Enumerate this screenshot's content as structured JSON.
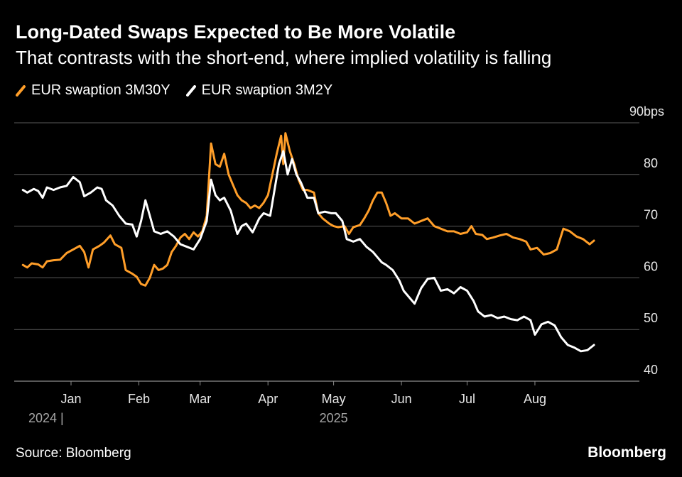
{
  "header": {
    "title": "Long-Dated Swaps Expected to Be More Volatile",
    "subtitle": "That contrasts with the short-end, where implied volatility is falling"
  },
  "footer": {
    "source": "Source: Bloomberg",
    "brand": "Bloomberg"
  },
  "colors": {
    "background": "#000000",
    "grid": "#5a5a5a",
    "text": "#ffffff",
    "axis_label": "#e6e6e6",
    "year_label": "#a6a6a6"
  },
  "chart_data": {
    "type": "line",
    "title": "Long-Dated Swaps Expected to Be More Volatile",
    "subtitle": "That contrasts with the short-end, where implied volatility is falling",
    "xlabel": "",
    "ylabel": "",
    "x_range": [
      "2024-12-10",
      "2025-08-28"
    ],
    "ylim": [
      40,
      90
    ],
    "y_ticks": [
      {
        "value": 90,
        "label": "90bps"
      },
      {
        "value": 80,
        "label": "80"
      },
      {
        "value": 70,
        "label": "70"
      },
      {
        "value": 60,
        "label": "60"
      },
      {
        "value": 50,
        "label": "50"
      },
      {
        "value": 40,
        "label": "40"
      }
    ],
    "x_ticks": [
      {
        "date": "2025-01-01",
        "label": "Jan"
      },
      {
        "date": "2025-02-01",
        "label": "Feb"
      },
      {
        "date": "2025-03-01",
        "label": "Mar"
      },
      {
        "date": "2025-04-01",
        "label": "Apr"
      },
      {
        "date": "2025-05-01",
        "label": "May"
      },
      {
        "date": "2025-06-01",
        "label": "Jun"
      },
      {
        "date": "2025-07-01",
        "label": "Jul"
      },
      {
        "date": "2025-08-01",
        "label": "Aug"
      }
    ],
    "year_labels": [
      {
        "date": "2024-12-12",
        "label": "2024 |"
      },
      {
        "date": "2025-05-01",
        "label": "2025"
      }
    ],
    "grid": true,
    "legend_position": "top-left",
    "series": [
      {
        "name": "EUR swaption 3M30Y",
        "color": "#ff9e29",
        "points": [
          [
            "2024-12-10",
            62.5
          ],
          [
            "2024-12-12",
            62.0
          ],
          [
            "2024-12-14",
            62.8
          ],
          [
            "2024-12-17",
            62.6
          ],
          [
            "2024-12-19",
            62.0
          ],
          [
            "2024-12-21",
            63.2
          ],
          [
            "2024-12-24",
            63.4
          ],
          [
            "2024-12-27",
            63.5
          ],
          [
            "2024-12-30",
            64.8
          ],
          [
            "2025-01-02",
            65.5
          ],
          [
            "2025-01-05",
            66.2
          ],
          [
            "2025-01-07",
            65.0
          ],
          [
            "2025-01-09",
            62.0
          ],
          [
            "2025-01-11",
            65.5
          ],
          [
            "2025-01-14",
            66.2
          ],
          [
            "2025-01-16",
            66.8
          ],
          [
            "2025-01-19",
            68.2
          ],
          [
            "2025-01-21",
            66.5
          ],
          [
            "2025-01-24",
            65.8
          ],
          [
            "2025-01-26",
            61.5
          ],
          [
            "2025-01-29",
            60.8
          ],
          [
            "2025-01-31",
            60.2
          ],
          [
            "2025-02-02",
            58.8
          ],
          [
            "2025-02-04",
            58.5
          ],
          [
            "2025-02-06",
            60.0
          ],
          [
            "2025-02-08",
            62.5
          ],
          [
            "2025-02-10",
            61.5
          ],
          [
            "2025-02-12",
            61.8
          ],
          [
            "2025-02-14",
            62.5
          ],
          [
            "2025-02-16",
            65.0
          ],
          [
            "2025-02-18",
            66.2
          ],
          [
            "2025-02-20",
            67.8
          ],
          [
            "2025-02-22",
            68.5
          ],
          [
            "2025-02-24",
            67.5
          ],
          [
            "2025-02-26",
            68.8
          ],
          [
            "2025-02-28",
            68.0
          ],
          [
            "2025-03-02",
            69.0
          ],
          [
            "2025-03-04",
            72.0
          ],
          [
            "2025-03-06",
            86.0
          ],
          [
            "2025-03-08",
            82.0
          ],
          [
            "2025-03-10",
            81.5
          ],
          [
            "2025-03-12",
            84.0
          ],
          [
            "2025-03-14",
            80.0
          ],
          [
            "2025-03-16",
            78.0
          ],
          [
            "2025-03-18",
            76.0
          ],
          [
            "2025-03-20",
            75.0
          ],
          [
            "2025-03-22",
            74.5
          ],
          [
            "2025-03-24",
            73.5
          ],
          [
            "2025-03-26",
            74.0
          ],
          [
            "2025-03-28",
            73.5
          ],
          [
            "2025-03-30",
            74.5
          ],
          [
            "2025-04-01",
            76.0
          ],
          [
            "2025-04-03",
            80.0
          ],
          [
            "2025-04-05",
            84.0
          ],
          [
            "2025-04-07",
            87.5
          ],
          [
            "2025-04-08",
            82.0
          ],
          [
            "2025-04-09",
            88.0
          ],
          [
            "2025-04-11",
            84.5
          ],
          [
            "2025-04-13",
            82.0
          ],
          [
            "2025-04-15",
            79.0
          ],
          [
            "2025-04-17",
            77.0
          ],
          [
            "2025-04-19",
            77.0
          ],
          [
            "2025-04-22",
            76.5
          ],
          [
            "2025-04-24",
            72.5
          ],
          [
            "2025-04-26",
            71.5
          ],
          [
            "2025-04-29",
            70.5
          ],
          [
            "2025-05-01",
            70.0
          ],
          [
            "2025-05-03",
            69.8
          ],
          [
            "2025-05-06",
            70.0
          ],
          [
            "2025-05-08",
            68.5
          ],
          [
            "2025-05-10",
            69.8
          ],
          [
            "2025-05-13",
            70.2
          ],
          [
            "2025-05-15",
            71.5
          ],
          [
            "2025-05-17",
            73.0
          ],
          [
            "2025-05-19",
            75.0
          ],
          [
            "2025-05-21",
            76.5
          ],
          [
            "2025-05-23",
            76.5
          ],
          [
            "2025-05-25",
            74.5
          ],
          [
            "2025-05-27",
            72.0
          ],
          [
            "2025-05-29",
            72.5
          ],
          [
            "2025-06-01",
            71.5
          ],
          [
            "2025-06-04",
            71.5
          ],
          [
            "2025-06-07",
            70.5
          ],
          [
            "2025-06-10",
            71.0
          ],
          [
            "2025-06-13",
            71.5
          ],
          [
            "2025-06-16",
            70.0
          ],
          [
            "2025-06-19",
            69.5
          ],
          [
            "2025-06-22",
            69.0
          ],
          [
            "2025-06-25",
            69.0
          ],
          [
            "2025-06-28",
            68.5
          ],
          [
            "2025-07-01",
            68.8
          ],
          [
            "2025-07-03",
            70.0
          ],
          [
            "2025-07-05",
            68.5
          ],
          [
            "2025-07-08",
            68.3
          ],
          [
            "2025-07-10",
            67.5
          ],
          [
            "2025-07-13",
            67.8
          ],
          [
            "2025-07-16",
            68.2
          ],
          [
            "2025-07-19",
            68.5
          ],
          [
            "2025-07-22",
            67.8
          ],
          [
            "2025-07-25",
            67.5
          ],
          [
            "2025-07-28",
            67.0
          ],
          [
            "2025-07-30",
            65.5
          ],
          [
            "2025-08-02",
            65.8
          ],
          [
            "2025-08-05",
            64.5
          ],
          [
            "2025-08-08",
            64.8
          ],
          [
            "2025-08-11",
            65.5
          ],
          [
            "2025-08-14",
            69.5
          ],
          [
            "2025-08-17",
            69.0
          ],
          [
            "2025-08-20",
            68.0
          ],
          [
            "2025-08-23",
            67.5
          ],
          [
            "2025-08-26",
            66.5
          ],
          [
            "2025-08-28",
            67.2
          ]
        ]
      },
      {
        "name": "EUR swaption 3M2Y",
        "color": "#ffffff",
        "points": [
          [
            "2024-12-10",
            77.0
          ],
          [
            "2024-12-12",
            76.5
          ],
          [
            "2024-12-15",
            77.2
          ],
          [
            "2024-12-17",
            76.8
          ],
          [
            "2024-12-19",
            75.5
          ],
          [
            "2024-12-21",
            77.5
          ],
          [
            "2024-12-24",
            77.0
          ],
          [
            "2024-12-27",
            77.5
          ],
          [
            "2024-12-30",
            77.8
          ],
          [
            "2025-01-02",
            79.5
          ],
          [
            "2025-01-05",
            78.5
          ],
          [
            "2025-01-07",
            75.8
          ],
          [
            "2025-01-10",
            76.5
          ],
          [
            "2025-01-13",
            77.5
          ],
          [
            "2025-01-15",
            77.2
          ],
          [
            "2025-01-17",
            75.0
          ],
          [
            "2025-01-20",
            74.0
          ],
          [
            "2025-01-23",
            72.0
          ],
          [
            "2025-01-26",
            70.5
          ],
          [
            "2025-01-29",
            70.3
          ],
          [
            "2025-01-31",
            68.0
          ],
          [
            "2025-02-02",
            71.0
          ],
          [
            "2025-02-04",
            75.0
          ],
          [
            "2025-02-06",
            72.0
          ],
          [
            "2025-02-08",
            69.0
          ],
          [
            "2025-02-11",
            68.5
          ],
          [
            "2025-02-14",
            69.0
          ],
          [
            "2025-02-17",
            68.0
          ],
          [
            "2025-02-20",
            66.5
          ],
          [
            "2025-02-23",
            66.0
          ],
          [
            "2025-02-26",
            65.5
          ],
          [
            "2025-03-01",
            67.5
          ],
          [
            "2025-03-04",
            71.0
          ],
          [
            "2025-03-06",
            79.0
          ],
          [
            "2025-03-08",
            76.0
          ],
          [
            "2025-03-10",
            75.0
          ],
          [
            "2025-03-12",
            75.5
          ],
          [
            "2025-03-15",
            73.0
          ],
          [
            "2025-03-18",
            68.5
          ],
          [
            "2025-03-20",
            70.0
          ],
          [
            "2025-03-22",
            70.5
          ],
          [
            "2025-03-25",
            68.8
          ],
          [
            "2025-03-28",
            71.5
          ],
          [
            "2025-03-30",
            72.5
          ],
          [
            "2025-04-02",
            72.0
          ],
          [
            "2025-04-04",
            77.0
          ],
          [
            "2025-04-06",
            82.0
          ],
          [
            "2025-04-08",
            84.5
          ],
          [
            "2025-04-10",
            80.0
          ],
          [
            "2025-04-12",
            83.0
          ],
          [
            "2025-04-14",
            80.0
          ],
          [
            "2025-04-16",
            78.5
          ],
          [
            "2025-04-19",
            75.5
          ],
          [
            "2025-04-22",
            75.5
          ],
          [
            "2025-04-24",
            72.5
          ],
          [
            "2025-04-27",
            72.8
          ],
          [
            "2025-04-30",
            72.5
          ],
          [
            "2025-05-02",
            72.5
          ],
          [
            "2025-05-05",
            71.0
          ],
          [
            "2025-05-07",
            67.5
          ],
          [
            "2025-05-10",
            67.0
          ],
          [
            "2025-05-13",
            67.5
          ],
          [
            "2025-05-16",
            66.0
          ],
          [
            "2025-05-19",
            65.0
          ],
          [
            "2025-05-21",
            64.0
          ],
          [
            "2025-05-23",
            63.0
          ],
          [
            "2025-05-25",
            62.5
          ],
          [
            "2025-05-28",
            61.5
          ],
          [
            "2025-05-31",
            59.5
          ],
          [
            "2025-06-02",
            57.5
          ],
          [
            "2025-06-05",
            56.0
          ],
          [
            "2025-06-07",
            55.0
          ],
          [
            "2025-06-10",
            58.0
          ],
          [
            "2025-06-13",
            59.8
          ],
          [
            "2025-06-16",
            60.0
          ],
          [
            "2025-06-19",
            57.5
          ],
          [
            "2025-06-22",
            57.8
          ],
          [
            "2025-06-25",
            57.0
          ],
          [
            "2025-06-28",
            58.2
          ],
          [
            "2025-07-01",
            57.5
          ],
          [
            "2025-07-04",
            55.5
          ],
          [
            "2025-07-06",
            53.5
          ],
          [
            "2025-07-09",
            52.5
          ],
          [
            "2025-07-12",
            52.8
          ],
          [
            "2025-07-15",
            52.2
          ],
          [
            "2025-07-18",
            52.5
          ],
          [
            "2025-07-21",
            52.0
          ],
          [
            "2025-07-24",
            51.8
          ],
          [
            "2025-07-27",
            52.5
          ],
          [
            "2025-07-30",
            51.8
          ],
          [
            "2025-08-01",
            49.0
          ],
          [
            "2025-08-04",
            51.0
          ],
          [
            "2025-08-07",
            51.5
          ],
          [
            "2025-08-10",
            50.8
          ],
          [
            "2025-08-13",
            48.5
          ],
          [
            "2025-08-16",
            47.0
          ],
          [
            "2025-08-19",
            46.5
          ],
          [
            "2025-08-22",
            45.8
          ],
          [
            "2025-08-25",
            46.0
          ],
          [
            "2025-08-28",
            47.0
          ]
        ]
      }
    ]
  }
}
